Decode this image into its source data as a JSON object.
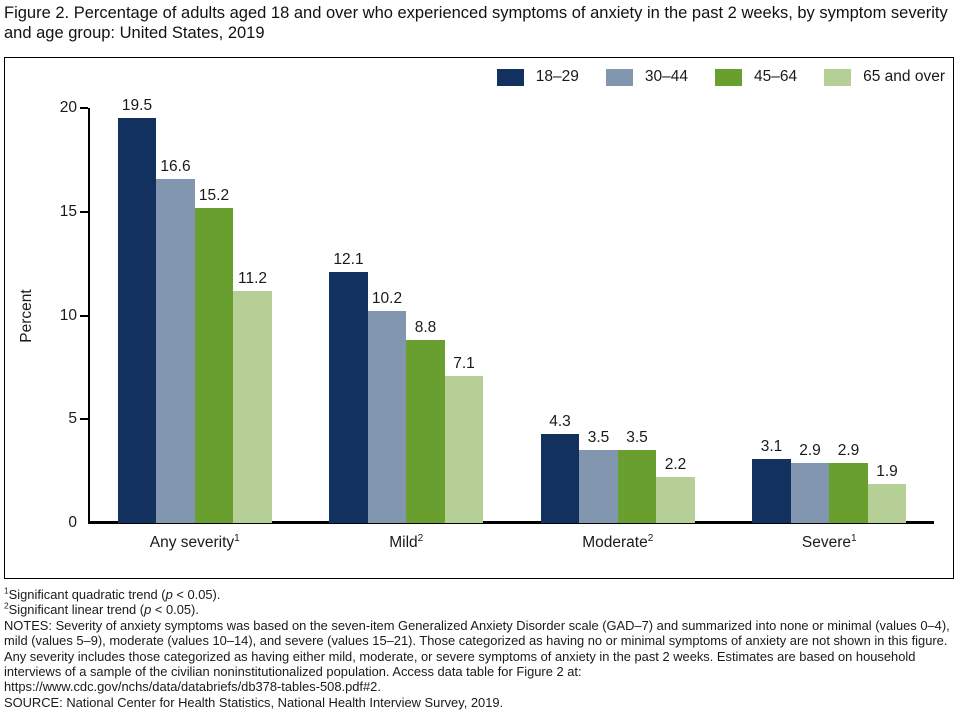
{
  "title": "Figure 2. Percentage of adults aged 18 and over who experienced symptoms of anxiety in the past 2 weeks, by symptom severity and age group: United States, 2019",
  "chart_data": {
    "type": "bar",
    "title": "Figure 2. Percentage of adults aged 18 and over who experienced symptoms of anxiety in the past 2 weeks, by symptom severity and age group: United States, 2019",
    "categories": [
      "Any severity",
      "Mild",
      "Moderate",
      "Severe"
    ],
    "category_sups": [
      "1",
      "2",
      "2",
      "1"
    ],
    "series": [
      {
        "name": "18–29",
        "color": "#12315e",
        "values": [
          19.5,
          12.1,
          4.3,
          3.1
        ]
      },
      {
        "name": "30–44",
        "color": "#8296af",
        "values": [
          16.6,
          10.2,
          3.5,
          2.9
        ]
      },
      {
        "name": "45–64",
        "color": "#699f2f",
        "values": [
          15.2,
          8.8,
          3.5,
          2.9
        ]
      },
      {
        "name": "65 and over",
        "color": "#b5cf97",
        "values": [
          11.2,
          7.1,
          2.2,
          1.9
        ]
      }
    ],
    "xlabel": "",
    "ylabel": "Percent",
    "ylim": [
      0,
      20
    ],
    "yticks": [
      0,
      5,
      10,
      15,
      20
    ],
    "grid": false,
    "legend_position": "top-right",
    "value_labels": true,
    "axis_color": "#000000"
  },
  "footnotes": [
    {
      "sup": "1",
      "before": "Significant quadratic trend (",
      "italic": "p",
      "after": " < 0.05)."
    },
    {
      "sup": "2",
      "before": "Significant linear trend (",
      "italic": "p",
      "after": " < 0.05)."
    }
  ],
  "notes": "NOTES: Severity of anxiety symptoms was based on the seven-item Generalized Anxiety Disorder scale (GAD–7) and summarized into none or minimal (values 0–4), mild (values 5–9), moderate (values 10–14), and severe (values 15–21). Those categorized as having no or minimal symptoms of anxiety are not shown in this figure. Any severity includes those categorized as having either mild, moderate, or severe symptoms of anxiety in the past 2 weeks. Estimates are based on household interviews of a sample of the civilian noninstitutionalized population. Access data table for Figure 2 at:\nhttps://www.cdc.gov/nchs/data/databriefs/db378-tables-508.pdf#2.",
  "source": "SOURCE: National Center for Health Statistics, National Health Interview Survey, 2019."
}
